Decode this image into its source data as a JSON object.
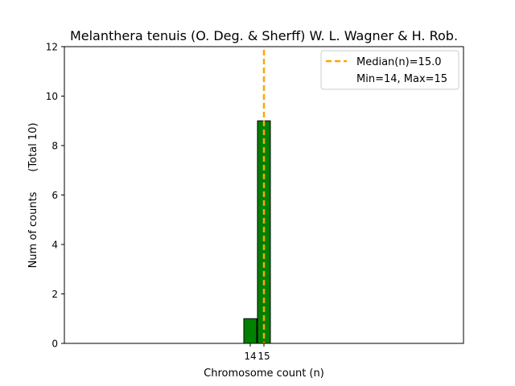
{
  "chart_data": {
    "type": "bar",
    "title": "Melanthera tenuis (O. Deg. & Sherff) W. L. Wagner & H. Rob.",
    "xlabel": "Chromosome count (n)",
    "ylabel": "Num of counts      (Total 10)",
    "x_ticks": [
      "14",
      "15"
    ],
    "ylim": [
      0,
      12
    ],
    "y_ticks": [
      0,
      2,
      4,
      6,
      8,
      10,
      12
    ],
    "bins": [
      {
        "label": "14",
        "x": 14,
        "value": 1
      },
      {
        "label": "15",
        "x": 15,
        "value": 9
      }
    ],
    "bar_color": "#008000",
    "median": {
      "value": 15.0,
      "color": "#FFA500",
      "label": "Median(n)=15.0"
    },
    "legend": {
      "placement": "top-right",
      "entries": [
        "Median(n)=15.0",
        "Min=14, Max=15"
      ]
    },
    "grid": false
  }
}
